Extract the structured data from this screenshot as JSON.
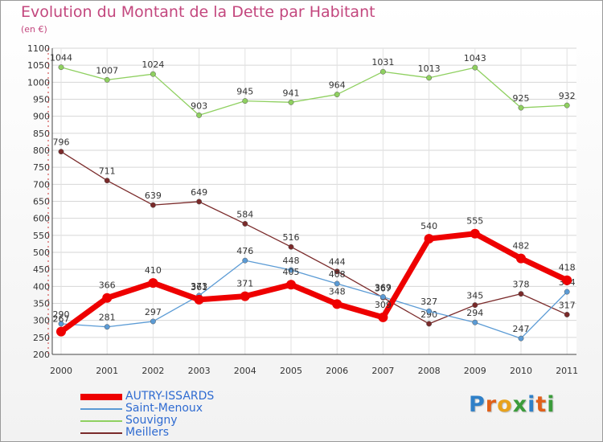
{
  "header": {
    "title": "Evolution du Montant de la Dette par Habitant",
    "unit": "(en €)"
  },
  "logo": {
    "letters": [
      "P",
      "r",
      "o",
      "x",
      "i",
      "t",
      "i"
    ],
    "colors": [
      "#2f80c8",
      "#e0601a",
      "#e8a21c",
      "#3b9c3b",
      "#2f80c8",
      "#e0601a",
      "#3b9c3b"
    ]
  },
  "chart_data": {
    "type": "line",
    "title": "Evolution du Montant de la Dette par Habitant",
    "ylabel": "(en €)",
    "xlabel": "",
    "categories": [
      "2000",
      "2001",
      "2002",
      "2003",
      "2004",
      "2005",
      "2006",
      "2007",
      "2008",
      "2009",
      "2010",
      "2011"
    ],
    "ylim": [
      200,
      1100
    ],
    "yticks": [
      200,
      250,
      300,
      350,
      400,
      450,
      500,
      550,
      600,
      650,
      700,
      750,
      800,
      850,
      900,
      950,
      1000,
      1050,
      1100
    ],
    "grid": true,
    "legend_position": "bottom-left",
    "series": [
      {
        "name": "Souvigny",
        "color": "#8fd060",
        "values": [
          1044,
          1007,
          1024,
          903,
          945,
          941,
          964,
          1031,
          1013,
          1043,
          925,
          932
        ],
        "labels": [
          "1044",
          "1007",
          "1024",
          "903",
          "945",
          "941",
          "964",
          "1031",
          "1013",
          "1043",
          "925",
          "932"
        ]
      },
      {
        "name": "Meillers",
        "color": "#7a2a2a",
        "values": [
          796,
          711,
          639,
          649,
          584,
          516,
          444,
          367,
          290,
          345,
          378,
          317
        ],
        "labels": [
          "796",
          "711",
          "639",
          "649",
          "584",
          "516",
          "444",
          "367",
          "290",
          "345",
          "378",
          "317"
        ]
      },
      {
        "name": "Saint-Menoux",
        "color": "#5b9bd5",
        "values": [
          290,
          281,
          297,
          373,
          476,
          448,
          408,
          369,
          327,
          294,
          247,
          384
        ],
        "labels": [
          "290",
          "281",
          "297",
          "373",
          "476",
          "448",
          "408",
          "369",
          "327",
          "294",
          "247",
          "384"
        ]
      },
      {
        "name": "AUTRY-ISSARDS",
        "color": "#ee0000",
        "values": [
          267,
          366,
          410,
          361,
          371,
          405,
          348,
          309,
          540,
          555,
          482,
          418
        ],
        "labels": [
          "267",
          "366",
          "410",
          "361",
          "371",
          "405",
          "348",
          "309",
          "540",
          "555",
          "482",
          "418"
        ]
      }
    ],
    "legend_order": [
      "AUTRY-ISSARDS",
      "Saint-Menoux",
      "Souvigny",
      "Meillers"
    ]
  }
}
